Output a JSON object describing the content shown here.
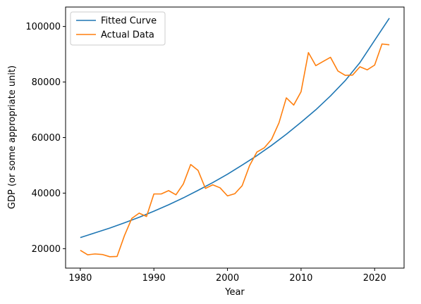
{
  "chart_data": {
    "type": "line",
    "title": "",
    "xlabel": "Year",
    "ylabel": "GDP (or some appropriate unit)",
    "xlim": [
      1978,
      2024
    ],
    "ylim": [
      13000,
      107000
    ],
    "x_ticks": [
      1980,
      1990,
      2000,
      2010,
      2020
    ],
    "y_ticks": [
      20000,
      40000,
      60000,
      80000,
      100000
    ],
    "grid": false,
    "legend_position": "top-left",
    "series": [
      {
        "name": "Fitted Curve",
        "color": "#1f77b4",
        "x": [
          1980,
          1982,
          1984,
          1986,
          1988,
          1990,
          1992,
          1994,
          1996,
          1998,
          2000,
          2002,
          2004,
          2006,
          2008,
          2010,
          2012,
          2014,
          2016,
          2018,
          2020,
          2022
        ],
        "values": [
          24000,
          25700,
          27400,
          29300,
          31300,
          33500,
          35800,
          38300,
          41000,
          43800,
          46800,
          50100,
          53500,
          57200,
          61200,
          65500,
          70000,
          75000,
          80500,
          87000,
          95000,
          103000
        ]
      },
      {
        "name": "Actual Data",
        "color": "#ff7f0e",
        "x": [
          1980,
          1981,
          1982,
          1983,
          1984,
          1985,
          1986,
          1987,
          1988,
          1989,
          1990,
          1991,
          1992,
          1993,
          1994,
          1995,
          1996,
          1997,
          1998,
          1999,
          2000,
          2001,
          2002,
          2003,
          2004,
          2005,
          2006,
          2007,
          2008,
          2009,
          2010,
          2011,
          2012,
          2013,
          2014,
          2015,
          2016,
          2017,
          2018,
          2019,
          2020,
          2021,
          2022
        ],
        "values": [
          19400,
          17800,
          18100,
          17900,
          17100,
          17200,
          24700,
          30900,
          32800,
          31600,
          39700,
          39700,
          40900,
          39400,
          43300,
          50300,
          48200,
          41700,
          43000,
          41900,
          39000,
          39800,
          42700,
          49900,
          54800,
          56300,
          59400,
          65300,
          74300,
          71700,
          76500,
          90600,
          85900,
          87400,
          88900,
          84000,
          82400,
          82500,
          85500,
          84400,
          86100,
          93700,
          93400
        ]
      }
    ]
  }
}
